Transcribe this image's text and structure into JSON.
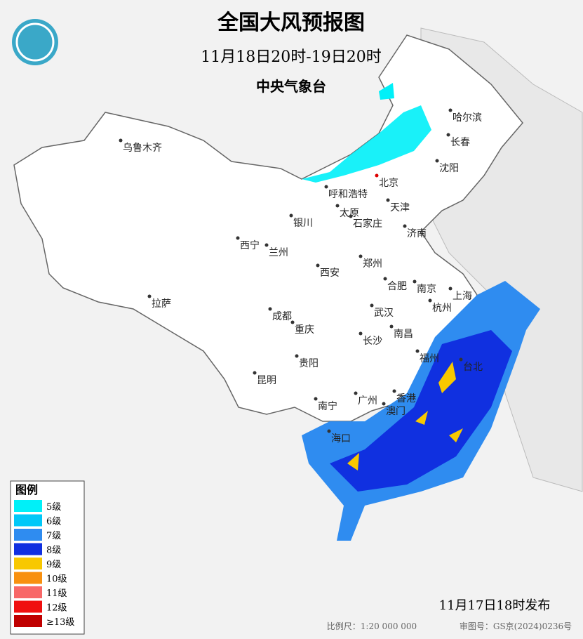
{
  "header": {
    "title": "全国大风预报图",
    "period": "11月18日20时-19日20时",
    "agency": "中央气象台"
  },
  "cities": [
    {
      "label": "乌鲁木齐"
    },
    {
      "label": "哈尔滨"
    },
    {
      "label": "长春"
    },
    {
      "label": "沈阳"
    },
    {
      "label": "北京"
    },
    {
      "label": "呼和浩特"
    },
    {
      "label": "天津"
    },
    {
      "label": "太原"
    },
    {
      "label": "石家庄"
    },
    {
      "label": "银川"
    },
    {
      "label": "济南"
    },
    {
      "label": "西宁"
    },
    {
      "label": "兰州"
    },
    {
      "label": "郑州"
    },
    {
      "label": "西安"
    },
    {
      "label": "合肥"
    },
    {
      "label": "南京"
    },
    {
      "label": "上海"
    },
    {
      "label": "拉萨"
    },
    {
      "label": "杭州"
    },
    {
      "label": "成都"
    },
    {
      "label": "武汉"
    },
    {
      "label": "重庆"
    },
    {
      "label": "南昌"
    },
    {
      "label": "长沙"
    },
    {
      "label": "福州"
    },
    {
      "label": "台北"
    },
    {
      "label": "贵阳"
    },
    {
      "label": "昆明"
    },
    {
      "label": "南宁"
    },
    {
      "label": "广州"
    },
    {
      "label": "香港"
    },
    {
      "label": "澳门"
    },
    {
      "label": "海口"
    }
  ],
  "legend": {
    "title": "图例",
    "items": [
      {
        "label": "5级",
        "color": "#00f0f8"
      },
      {
        "label": "6级",
        "color": "#00c8f8"
      },
      {
        "label": "7级",
        "color": "#2f8cf0"
      },
      {
        "label": "8级",
        "color": "#1030e0"
      },
      {
        "label": "9级",
        "color": "#f8c800"
      },
      {
        "label": "10级",
        "color": "#f89010"
      },
      {
        "label": "11级",
        "color": "#f86868"
      },
      {
        "label": "12级",
        "color": "#f01010"
      },
      {
        "label": "≥13级",
        "color": "#c00000"
      }
    ]
  },
  "footer": {
    "issued": "11月17日18时发布",
    "scale": "比例尺：1:20 000 000",
    "approval": "审图号：GS京(2024)0236号"
  }
}
